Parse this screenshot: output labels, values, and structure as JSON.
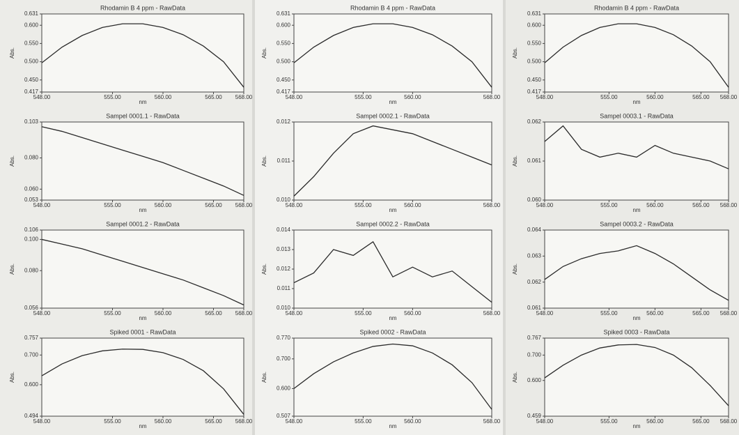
{
  "chart_data": [
    {
      "type": "line",
      "title": "Rhodamin B 4 ppm - RawData",
      "x_label": "nm",
      "y_label": "Abs.",
      "x": [
        548,
        550,
        552,
        554,
        556,
        558,
        560,
        562,
        564,
        566,
        568
      ],
      "series": [
        {
          "color": "#2a2a2a",
          "values": [
            0.497,
            0.54,
            0.572,
            0.594,
            0.604,
            0.604,
            0.594,
            0.574,
            0.543,
            0.5,
            0.43
          ]
        }
      ],
      "xlim": [
        548,
        568
      ],
      "xticks": [
        {
          "value": 548,
          "label": "548.00"
        },
        {
          "value": 555,
          "label": "555.00"
        },
        {
          "value": 560,
          "label": "560.00"
        },
        {
          "value": 565,
          "label": "565.00"
        },
        {
          "value": 568,
          "label": "568.00"
        }
      ],
      "ylim": [
        0.417,
        0.631
      ],
      "yticks": [
        0.417,
        {
          "value": 0.45,
          "label": "0.450"
        },
        {
          "value": 0.5,
          "label": "0.500"
        },
        {
          "value": 0.55,
          "label": "0.550"
        },
        {
          "value": 0.6,
          "label": "0.600"
        },
        0.631
      ]
    },
    {
      "type": "line",
      "title": "Sampel 0001.1 - RawData",
      "x_label": "nm",
      "y_label": "Abs.",
      "x": [
        548,
        550,
        552,
        554,
        556,
        558,
        560,
        562,
        564,
        566,
        568
      ],
      "series": [
        {
          "color": "#2a2a2a",
          "values": [
            0.1,
            0.097,
            0.093,
            0.089,
            0.085,
            0.081,
            0.077,
            0.072,
            0.067,
            0.062,
            0.056
          ]
        }
      ],
      "xlim": [
        548,
        568
      ],
      "xticks": [
        {
          "value": 548,
          "label": "548.00"
        },
        {
          "value": 555,
          "label": "555.00"
        },
        {
          "value": 560,
          "label": "560.00"
        },
        {
          "value": 565,
          "label": "565.00"
        },
        {
          "value": 568,
          "label": "568.00"
        }
      ],
      "ylim": [
        0.053,
        0.103
      ],
      "yticks": [
        0.053,
        {
          "value": 0.06,
          "label": "0.060"
        },
        {
          "value": 0.08,
          "label": "0.080"
        },
        0.103
      ]
    },
    {
      "type": "line",
      "title": "Sampel 0001.2 - RawData",
      "x_label": "nm",
      "y_label": "Abs.",
      "x": [
        548,
        550,
        552,
        554,
        556,
        558,
        560,
        562,
        564,
        566,
        568
      ],
      "series": [
        {
          "color": "#2a2a2a",
          "values": [
            0.1,
            0.097,
            0.094,
            0.09,
            0.086,
            0.082,
            0.078,
            0.074,
            0.069,
            0.064,
            0.058
          ]
        }
      ],
      "xlim": [
        548,
        568
      ],
      "xticks": [
        {
          "value": 548,
          "label": "548.00"
        },
        {
          "value": 555,
          "label": "555.00"
        },
        {
          "value": 560,
          "label": "560.00"
        },
        {
          "value": 565,
          "label": "565.00"
        },
        {
          "value": 568,
          "label": "568.00"
        }
      ],
      "ylim": [
        0.056,
        0.106
      ],
      "yticks": [
        0.056,
        {
          "value": 0.08,
          "label": "0.080"
        },
        {
          "value": 0.1,
          "label": "0.100"
        },
        0.106
      ]
    },
    {
      "type": "line",
      "title": "Spiked 0001 - RawData",
      "x_label": "nm",
      "y_label": "Abs.",
      "x": [
        548,
        550,
        552,
        554,
        556,
        558,
        560,
        562,
        564,
        566,
        568
      ],
      "series": [
        {
          "color": "#2a2a2a",
          "values": [
            0.63,
            0.67,
            0.698,
            0.714,
            0.72,
            0.719,
            0.708,
            0.685,
            0.647,
            0.586,
            0.5
          ]
        }
      ],
      "xlim": [
        548,
        568
      ],
      "xticks": [
        {
          "value": 548,
          "label": "548.00"
        },
        {
          "value": 555,
          "label": "555.00"
        },
        {
          "value": 560,
          "label": "560.00"
        },
        {
          "value": 565,
          "label": "565.00"
        },
        {
          "value": 568,
          "label": "568.00"
        }
      ],
      "ylim": [
        0.494,
        0.757
      ],
      "yticks": [
        0.494,
        {
          "value": 0.6,
          "label": "0.600"
        },
        {
          "value": 0.7,
          "label": "0.700"
        },
        0.757
      ]
    },
    {
      "type": "line",
      "title": "Rhodamin B 4 ppm - RawData",
      "x_label": "nm",
      "y_label": "Abs.",
      "x": [
        548,
        550,
        552,
        554,
        556,
        558,
        560,
        562,
        564,
        566,
        568
      ],
      "series": [
        {
          "color": "#2a2a2a",
          "values": [
            0.497,
            0.54,
            0.572,
            0.594,
            0.604,
            0.604,
            0.594,
            0.574,
            0.543,
            0.5,
            0.43
          ]
        }
      ],
      "xlim": [
        548,
        568
      ],
      "xticks": [
        {
          "value": 548,
          "label": "548.00"
        },
        {
          "value": 555,
          "label": "555.00"
        },
        {
          "value": 560,
          "label": "560.00"
        },
        {
          "value": 568,
          "label": "568.00"
        }
      ],
      "ylim": [
        0.417,
        0.631
      ],
      "yticks": [
        0.417,
        {
          "value": 0.45,
          "label": "0.450"
        },
        {
          "value": 0.5,
          "label": "0.500"
        },
        {
          "value": 0.55,
          "label": "0.550"
        },
        {
          "value": 0.6,
          "label": "0.600"
        },
        0.631
      ]
    },
    {
      "type": "line",
      "title": "Sampel 0002.1 - RawData",
      "x_label": "nm",
      "y_label": "Abs.",
      "x": [
        548,
        550,
        552,
        554,
        556,
        558,
        560,
        562,
        564,
        566,
        568
      ],
      "series": [
        {
          "color": "#2a2a2a",
          "values": [
            0.0101,
            0.0106,
            0.0112,
            0.0117,
            0.0119,
            0.0118,
            0.0117,
            0.0115,
            0.0113,
            0.0111,
            0.0109
          ]
        }
      ],
      "xlim": [
        548,
        568
      ],
      "xticks": [
        {
          "value": 548,
          "label": "548.00"
        },
        {
          "value": 555,
          "label": "555.00"
        },
        {
          "value": 560,
          "label": "560.00"
        },
        {
          "value": 568,
          "label": "568.00"
        }
      ],
      "ylim": [
        0.01,
        0.012
      ],
      "yticks": [
        {
          "value": 0.01,
          "label": "0.010"
        },
        0.011,
        {
          "value": 0.012,
          "label": "0.012"
        }
      ]
    },
    {
      "type": "line",
      "title": "Sampel 0002.2 - RawData",
      "x_label": "nm",
      "y_label": "Abs.",
      "x": [
        548,
        550,
        552,
        554,
        556,
        558,
        560,
        562,
        564,
        566,
        568
      ],
      "series": [
        {
          "color": "#2a2a2a",
          "values": [
            0.0113,
            0.0118,
            0.013,
            0.0127,
            0.0134,
            0.0116,
            0.0121,
            0.0116,
            0.0119,
            0.0111,
            0.0103
          ]
        }
      ],
      "xlim": [
        548,
        568
      ],
      "xticks": [
        {
          "value": 548,
          "label": "548.00"
        },
        {
          "value": 555,
          "label": "555.00"
        },
        {
          "value": 560,
          "label": "560.00"
        },
        {
          "value": 568,
          "label": "568.00"
        }
      ],
      "ylim": [
        0.01,
        0.014
      ],
      "yticks": [
        {
          "value": 0.01,
          "label": "0.010"
        },
        0.011,
        0.012,
        0.013,
        0.014
      ]
    },
    {
      "type": "line",
      "title": "Spiked 0002 - RawData",
      "x_label": "nm",
      "y_label": "Abs.",
      "x": [
        548,
        550,
        552,
        554,
        556,
        558,
        560,
        562,
        564,
        566,
        568
      ],
      "series": [
        {
          "color": "#2a2a2a",
          "values": [
            0.6,
            0.65,
            0.69,
            0.72,
            0.742,
            0.75,
            0.744,
            0.72,
            0.68,
            0.62,
            0.53
          ]
        }
      ],
      "xlim": [
        548,
        568
      ],
      "xticks": [
        {
          "value": 548,
          "label": "548.00"
        },
        {
          "value": 555,
          "label": "555.00"
        },
        {
          "value": 560,
          "label": "560.00"
        },
        {
          "value": 568,
          "label": "568.00"
        }
      ],
      "ylim": [
        0.507,
        0.77
      ],
      "yticks": [
        0.507,
        {
          "value": 0.6,
          "label": "0.600"
        },
        {
          "value": 0.7,
          "label": "0.700"
        },
        {
          "value": 0.77,
          "label": "0.770"
        }
      ]
    },
    {
      "type": "line",
      "title": "Rhodamin B 4 ppm - RawData",
      "x_label": "nm",
      "y_label": "Abs.",
      "x": [
        548,
        550,
        552,
        554,
        556,
        558,
        560,
        562,
        564,
        566,
        568
      ],
      "series": [
        {
          "color": "#2a2a2a",
          "values": [
            0.497,
            0.54,
            0.572,
            0.594,
            0.604,
            0.604,
            0.594,
            0.574,
            0.543,
            0.5,
            0.43
          ]
        }
      ],
      "xlim": [
        548,
        568
      ],
      "xticks": [
        {
          "value": 548,
          "label": "548.00"
        },
        {
          "value": 555,
          "label": "555.00"
        },
        {
          "value": 560,
          "label": "560.00"
        },
        {
          "value": 565,
          "label": "565.00"
        },
        {
          "value": 568,
          "label": "568.00"
        }
      ],
      "ylim": [
        0.417,
        0.631
      ],
      "yticks": [
        0.417,
        {
          "value": 0.45,
          "label": "0.450"
        },
        {
          "value": 0.5,
          "label": "0.500"
        },
        {
          "value": 0.55,
          "label": "0.550"
        },
        {
          "value": 0.6,
          "label": "0.600"
        },
        0.631
      ]
    },
    {
      "type": "line",
      "title": "Sampel 0003.1 - RawData",
      "x_label": "nm",
      "y_label": "Abs.",
      "x": [
        548,
        550,
        552,
        554,
        556,
        558,
        560,
        562,
        564,
        566,
        568
      ],
      "series": [
        {
          "color": "#2a2a2a",
          "values": [
            0.0615,
            0.0619,
            0.0613,
            0.0611,
            0.0612,
            0.0611,
            0.0614,
            0.0612,
            0.0611,
            0.061,
            0.0608
          ]
        }
      ],
      "xlim": [
        548,
        568
      ],
      "xticks": [
        {
          "value": 548,
          "label": "548.00"
        },
        {
          "value": 555,
          "label": "555.00"
        },
        {
          "value": 560,
          "label": "560.00"
        },
        {
          "value": 565,
          "label": "565.00"
        },
        {
          "value": 568,
          "label": "568.00"
        }
      ],
      "ylim": [
        0.06,
        0.062
      ],
      "yticks": [
        {
          "value": 0.06,
          "label": "0.060"
        },
        0.061,
        {
          "value": 0.062,
          "label": "0.062"
        }
      ]
    },
    {
      "type": "line",
      "title": "Sampel 0003.2 - RawData",
      "x_label": "nm",
      "y_label": "Abs.",
      "x": [
        548,
        550,
        552,
        554,
        556,
        558,
        560,
        562,
        564,
        566,
        568
      ],
      "series": [
        {
          "color": "#2a2a2a",
          "values": [
            0.0621,
            0.0626,
            0.0629,
            0.0631,
            0.0632,
            0.0634,
            0.0631,
            0.0627,
            0.0622,
            0.0617,
            0.0613
          ]
        }
      ],
      "xlim": [
        548,
        568
      ],
      "xticks": [
        {
          "value": 548,
          "label": "548.00"
        },
        {
          "value": 555,
          "label": "555.00"
        },
        {
          "value": 560,
          "label": "560.00"
        },
        {
          "value": 565,
          "label": "565.00"
        },
        {
          "value": 568,
          "label": "568.00"
        }
      ],
      "ylim": [
        0.061,
        0.064
      ],
      "yticks": [
        0.061,
        0.062,
        0.063,
        0.064
      ]
    },
    {
      "type": "line",
      "title": "Spiked 0003 - RawData",
      "x_label": "nm",
      "y_label": "Abs.",
      "x": [
        548,
        550,
        552,
        554,
        556,
        558,
        560,
        562,
        564,
        566,
        568
      ],
      "series": [
        {
          "color": "#2a2a2a",
          "values": [
            0.61,
            0.66,
            0.7,
            0.728,
            0.74,
            0.742,
            0.73,
            0.7,
            0.65,
            0.58,
            0.5
          ]
        }
      ],
      "xlim": [
        548,
        568
      ],
      "xticks": [
        {
          "value": 548,
          "label": "548.00"
        },
        {
          "value": 555,
          "label": "555.00"
        },
        {
          "value": 560,
          "label": "560.00"
        },
        {
          "value": 565,
          "label": "565.00"
        },
        {
          "value": 568,
          "label": "568.00"
        }
      ],
      "ylim": [
        0.459,
        0.767
      ],
      "yticks": [
        0.459,
        {
          "value": 0.6,
          "label": "0.600"
        },
        {
          "value": 0.7,
          "label": "0.700"
        },
        0.767
      ]
    }
  ]
}
